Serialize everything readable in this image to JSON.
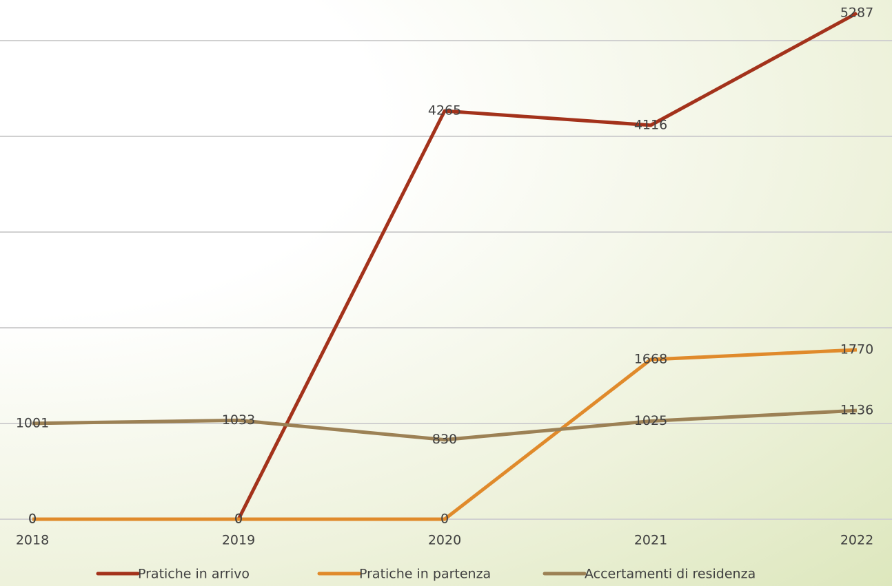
{
  "chart_data": {
    "type": "line",
    "categories": [
      "2018",
      "2019",
      "2020",
      "2021",
      "2022"
    ],
    "series": [
      {
        "name": "Pratiche in arrivo",
        "color": "#a3321b",
        "values": [
          0,
          0,
          4265,
          4116,
          5287
        ]
      },
      {
        "name": "Pratiche in partenza",
        "color": "#e08a2b",
        "values": [
          0,
          0,
          0,
          1668,
          1770
        ]
      },
      {
        "name": "Accertamenti di residenza",
        "color": "#9c8155",
        "values": [
          1001,
          1033,
          830,
          1025,
          1136
        ]
      }
    ],
    "ylim": [
      0,
      5400
    ],
    "yticks": [
      0,
      1000,
      2000,
      3000,
      4000,
      5000
    ],
    "grid": true,
    "legend": "bottom"
  }
}
